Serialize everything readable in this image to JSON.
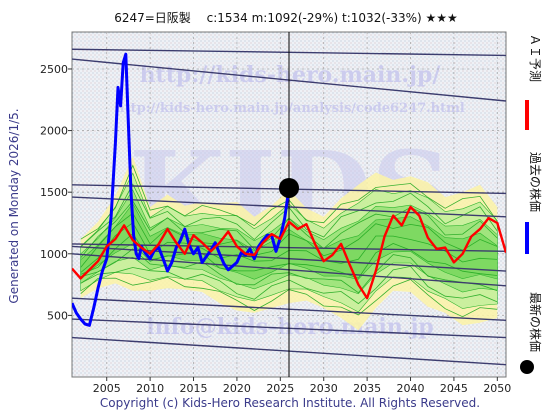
{
  "header": {
    "title": "6247=日阪製　 c:1534  m:1092(-29%)  t:1032(-33%)  ★★★"
  },
  "side_note": "Generated on Monday 2026/1/5.",
  "copyright": "Copyright (c) Kids-Hero Research Institute. All Rights Reserved.",
  "watermarks": {
    "big": "KIDS",
    "url1": "http://kids-hero.main.jp/",
    "url2": "http://kids-hero.main.jp/analysis/code6247.html",
    "mail": "info@kids-hero.main.jp"
  },
  "legend": [
    {
      "label": "ＡＩ予測",
      "color": "#ff0000"
    },
    {
      "label": "過去の株価",
      "color": "#0000ff"
    },
    {
      "label": "最新の株価",
      "color": "#000000"
    }
  ],
  "chart_data": {
    "type": "line",
    "xlim": [
      2001,
      2051
    ],
    "ylim": [
      0,
      2800
    ],
    "xticks": [
      2005,
      2010,
      2015,
      2020,
      2025,
      2030,
      2035,
      2040,
      2045,
      2050
    ],
    "yticks": [
      500,
      1000,
      1500,
      2000,
      2500
    ],
    "grid": true,
    "latest_point": {
      "x": 2026.0,
      "y": 1534
    },
    "series": [
      {
        "name": "過去の株価",
        "color": "#0000ff",
        "x": [
          2001.0,
          2001.5,
          2002.0,
          2002.5,
          2003.0,
          2003.5,
          2004.0,
          2004.5,
          2005.0,
          2005.5,
          2006.0,
          2006.3,
          2006.6,
          2006.9,
          2007.2,
          2007.5,
          2007.8,
          2008.1,
          2008.4,
          2008.7,
          2009.0,
          2009.5,
          2010.0,
          2010.5,
          2011.0,
          2011.5,
          2012.0,
          2012.5,
          2013.0,
          2013.5,
          2014.0,
          2014.5,
          2015.0,
          2015.5,
          2016.0,
          2016.5,
          2017.0,
          2017.5,
          2018.0,
          2018.5,
          2019.0,
          2019.5,
          2020.0,
          2020.5,
          2021.0,
          2021.5,
          2022.0,
          2022.5,
          2023.0,
          2023.5,
          2024.0,
          2024.5,
          2025.0,
          2025.5,
          2026.0
        ],
        "y": [
          600,
          520,
          470,
          430,
          420,
          560,
          720,
          860,
          960,
          1300,
          1900,
          2350,
          2200,
          2550,
          2620,
          2050,
          1500,
          1150,
          1000,
          960,
          1060,
          1000,
          960,
          1030,
          1050,
          960,
          860,
          930,
          1050,
          1110,
          1200,
          1070,
          1000,
          1050,
          930,
          980,
          1030,
          1090,
          1000,
          920,
          870,
          900,
          930,
          1010,
          990,
          1040,
          960,
          1060,
          1110,
          1150,
          1150,
          1020,
          1130,
          1290,
          1534
        ]
      },
      {
        "name": "ＡＩ予測",
        "color": "#ff0000",
        "x": [
          2001.0,
          2002.0,
          2003.0,
          2004.0,
          2005.0,
          2006.0,
          2007.0,
          2008.0,
          2009.0,
          2010.0,
          2011.0,
          2012.0,
          2013.0,
          2014.0,
          2015.0,
          2016.0,
          2017.0,
          2018.0,
          2019.0,
          2020.0,
          2021.0,
          2022.0,
          2023.0,
          2024.0,
          2025.0,
          2026.0,
          2027.0,
          2028.0,
          2029.0,
          2030.0,
          2031.0,
          2032.0,
          2033.0,
          2034.0,
          2035.0,
          2036.0,
          2037.0,
          2038.0,
          2039.0,
          2040.0,
          2041.0,
          2042.0,
          2043.0,
          2044.0,
          2045.0,
          2046.0,
          2047.0,
          2048.0,
          2049.0,
          2050.0,
          2051.0
        ],
        "y": [
          880,
          800,
          870,
          940,
          1060,
          1120,
          1230,
          1110,
          1050,
          1000,
          1080,
          1200,
          1090,
          1000,
          1150,
          1090,
          1020,
          1090,
          1180,
          1060,
          1000,
          990,
          1090,
          1160,
          1120,
          1260,
          1200,
          1240,
          1080,
          940,
          990,
          1080,
          910,
          750,
          640,
          860,
          1140,
          1310,
          1230,
          1380,
          1310,
          1130,
          1040,
          1050,
          930,
          1000,
          1140,
          1200,
          1290,
          1250,
          1010
        ]
      }
    ],
    "band_upper": {
      "x": [
        2002,
        2004,
        2006,
        2008,
        2010,
        2012,
        2014,
        2016,
        2018,
        2020,
        2022,
        2024,
        2026,
        2028,
        2030,
        2032,
        2034,
        2036,
        2038,
        2040,
        2042,
        2044,
        2046,
        2048,
        2050
      ],
      "y": [
        1120,
        1260,
        1470,
        1790,
        1380,
        1480,
        1390,
        1420,
        1410,
        1420,
        1300,
        1390,
        1520,
        1370,
        1300,
        1450,
        1560,
        1660,
        1600,
        1630,
        1580,
        1460,
        1500,
        1560,
        1380
      ]
    },
    "band_lower": {
      "x": [
        2002,
        2004,
        2006,
        2008,
        2010,
        2012,
        2014,
        2016,
        2018,
        2020,
        2022,
        2024,
        2026,
        2028,
        2030,
        2032,
        2034,
        2036,
        2038,
        2040,
        2042,
        2044,
        2046,
        2048,
        2050
      ],
      "y": [
        640,
        720,
        760,
        700,
        700,
        720,
        710,
        690,
        600,
        540,
        520,
        560,
        600,
        620,
        560,
        480,
        380,
        560,
        700,
        690,
        570,
        520,
        420,
        440,
        480
      ]
    },
    "trend_lines": [
      {
        "y_at_xlim": [
          2660,
          2610
        ]
      },
      {
        "y_at_xlim": [
          2580,
          2240
        ]
      },
      {
        "y_at_xlim": [
          1560,
          1490
        ]
      },
      {
        "y_at_xlim": [
          1460,
          1300
        ]
      },
      {
        "y_at_xlim": [
          1080,
          1020
        ]
      },
      {
        "y_at_xlim": [
          1060,
          860
        ]
      },
      {
        "y_at_xlim": [
          1000,
          740
        ]
      },
      {
        "y_at_xlim": [
          640,
          460
        ]
      },
      {
        "y_at_xlim": [
          470,
          320
        ]
      },
      {
        "y_at_xlim": [
          320,
          100
        ]
      }
    ]
  }
}
